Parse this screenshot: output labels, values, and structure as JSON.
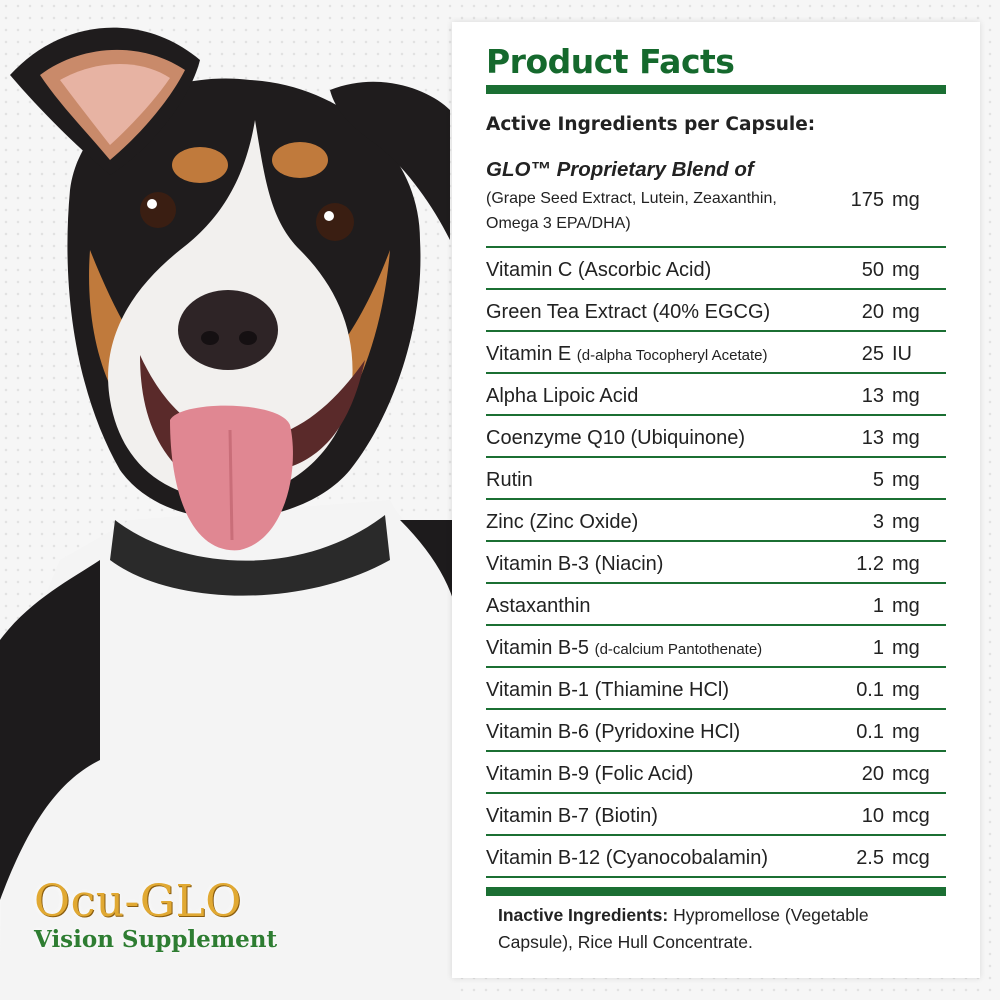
{
  "brand": {
    "name": "Ocu-GLO",
    "tagline": "Vision Supplement"
  },
  "facts": {
    "title": "Product Facts",
    "subheading": "Active Ingredients per Capsule:",
    "blend": {
      "name": "GLO™ Proprietary Blend of",
      "components": "(Grape Seed Extract, Lutein, Zeaxanthin, Omega 3 EPA/DHA)",
      "amount": "175",
      "unit": "mg"
    },
    "ingredients": [
      {
        "name": "Vitamin C (Ascorbic Acid)",
        "note": "",
        "amount": "50",
        "unit": "mg"
      },
      {
        "name": "Green Tea Extract (40% EGCG)",
        "note": "",
        "amount": "20",
        "unit": "mg"
      },
      {
        "name": "Vitamin E ",
        "note": "(d-alpha Tocopheryl Acetate)",
        "amount": "25",
        "unit": "IU"
      },
      {
        "name": "Alpha Lipoic Acid",
        "note": "",
        "amount": "13",
        "unit": "mg"
      },
      {
        "name": "Coenzyme Q10 (Ubiquinone)",
        "note": "",
        "amount": "13",
        "unit": "mg"
      },
      {
        "name": "Rutin",
        "note": "",
        "amount": "5",
        "unit": "mg"
      },
      {
        "name": "Zinc (Zinc Oxide)",
        "note": "",
        "amount": "3",
        "unit": "mg"
      },
      {
        "name": "Vitamin B-3 (Niacin)",
        "note": "",
        "amount": "1.2",
        "unit": "mg"
      },
      {
        "name": "Astaxanthin",
        "note": "",
        "amount": "1",
        "unit": "mg"
      },
      {
        "name": "Vitamin B-5 ",
        "note": "(d-calcium Pantothenate)",
        "amount": "1",
        "unit": "mg"
      },
      {
        "name": "Vitamin B-1 (Thiamine HCl)",
        "note": "",
        "amount": "0.1",
        "unit": "mg"
      },
      {
        "name": "Vitamin B-6 (Pyridoxine HCl)",
        "note": "",
        "amount": "0.1",
        "unit": "mg"
      },
      {
        "name": "Vitamin B-9 (Folic Acid)",
        "note": "",
        "amount": "20",
        "unit": "mcg"
      },
      {
        "name": "Vitamin B-7 (Biotin)",
        "note": "",
        "amount": "10",
        "unit": "mcg"
      },
      {
        "name": "Vitamin B-12 (Cyanocobalamin)",
        "note": "",
        "amount": "2.5",
        "unit": "mcg"
      }
    ],
    "inactive": {
      "label": "Inactive Ingredients:",
      "text": "Hypromellose (Vegetable Capsule), Rice Hull Concentrate."
    }
  },
  "colors": {
    "accent_green": "#1b6f33",
    "title_green": "#15692d",
    "brand_gold": "#e1a933"
  }
}
